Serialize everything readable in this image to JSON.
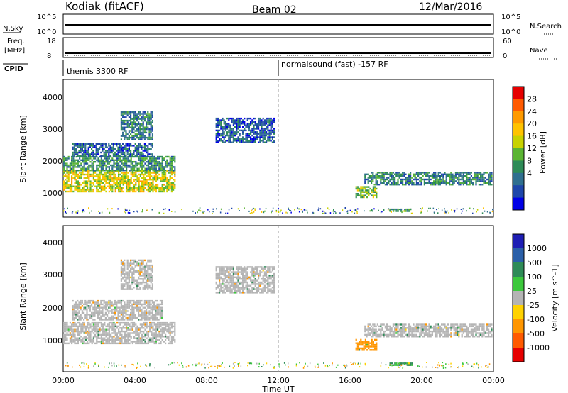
{
  "header": {
    "station": "Kodiak (fitACF)",
    "beam": "Beam 02",
    "date": "12/Mar/2016"
  },
  "status_panels": {
    "nsky_label": "N.Sky",
    "nsky_ticks": [
      "10^5",
      "10^0"
    ],
    "nsearch_label": "N.Search",
    "nsearch_ticks": [
      "10^5",
      "10^0"
    ],
    "freq_label_line1": "Freq.",
    "freq_label_line2": "[MHz]",
    "freq_ticks": [
      "18",
      "8"
    ],
    "nave_label": "Nave",
    "nave_ticks": [
      "60",
      "0"
    ],
    "cpid_label": "CPID",
    "cpid_segments": [
      {
        "label": "themis 3300 RF",
        "start_hour": 0
      },
      {
        "label": "normalsound (fast) -157 RF",
        "start_hour": 12
      }
    ]
  },
  "axes": {
    "ylabel": "Slant Range [km]",
    "yticks": [
      "4000",
      "3000",
      "2000",
      "1000"
    ],
    "xlabel": "Time UT",
    "xticks": [
      "00:00",
      "04:00",
      "08:00",
      "12:00",
      "16:00",
      "20:00",
      "00:00"
    ]
  },
  "colorbars": {
    "power": {
      "label": "Power [dB]",
      "ticks": [
        "28",
        "24",
        "20",
        "16",
        "12",
        "8",
        "4"
      ],
      "colors": [
        "#e60000",
        "#ff5a00",
        "#ff9a00",
        "#ffc300",
        "#c8d200",
        "#5ab432",
        "#2e8b57",
        "#2f6f8f",
        "#1e46aa",
        "#0000e6"
      ]
    },
    "velocity": {
      "label": "Velocity [m s^-1]",
      "ticks": [
        "1000",
        "500",
        "100",
        "25",
        "-25",
        "-100",
        "-500",
        "-1000"
      ],
      "colors": [
        "#1e1eb4",
        "#2a5fa8",
        "#2e8b57",
        "#3cc83c",
        "#b4b4b4",
        "#ffd200",
        "#ff9600",
        "#ff5a00",
        "#e60000"
      ]
    }
  },
  "chart_data": [
    {
      "type": "heatmap",
      "title": "Power",
      "x_range_hours": [
        0,
        24
      ],
      "y_range_km": [
        180,
        4500
      ],
      "value_range": [
        0,
        30
      ],
      "regions": [
        {
          "t0": 0.0,
          "t1": 6.2,
          "r0": 1000,
          "r1": 1650,
          "value": 17
        },
        {
          "t0": 0.0,
          "t1": 6.2,
          "r0": 1650,
          "r1": 2100,
          "value": 10
        },
        {
          "t0": 0.5,
          "t1": 5.0,
          "r0": 2100,
          "r1": 2500,
          "value": 7
        },
        {
          "t0": 3.2,
          "t1": 5.0,
          "r0": 2600,
          "r1": 3500,
          "value": 8
        },
        {
          "t0": 8.5,
          "t1": 11.8,
          "r0": 2500,
          "r1": 3300,
          "value": 6
        },
        {
          "t0": 16.3,
          "t1": 17.5,
          "r0": 800,
          "r1": 1150,
          "value": 14
        },
        {
          "t0": 16.8,
          "t1": 23.9,
          "r0": 1200,
          "r1": 1600,
          "value": 9
        },
        {
          "t0": 18.2,
          "t1": 19.5,
          "r0": 350,
          "r1": 450,
          "value": 12
        }
      ]
    },
    {
      "type": "heatmap",
      "title": "Velocity",
      "x_range_hours": [
        0,
        24
      ],
      "y_range_km": [
        180,
        4500
      ],
      "value_range": [
        -1000,
        1000
      ],
      "regions": [
        {
          "t0": 0.0,
          "t1": 6.2,
          "r0": 1000,
          "r1": 1650,
          "value": 0
        },
        {
          "t0": 0.5,
          "t1": 5.5,
          "r0": 1700,
          "r1": 2300,
          "value": 0
        },
        {
          "t0": 3.2,
          "t1": 5.0,
          "r0": 2600,
          "r1": 3500,
          "value": 0
        },
        {
          "t0": 8.5,
          "t1": 11.8,
          "r0": 2500,
          "r1": 3300,
          "value": 0
        },
        {
          "t0": 16.3,
          "t1": 17.5,
          "r0": 800,
          "r1": 1150,
          "value": -150
        },
        {
          "t0": 16.8,
          "t1": 23.9,
          "r0": 1200,
          "r1": 1600,
          "value": 0
        },
        {
          "t0": 18.2,
          "t1": 19.5,
          "r0": 350,
          "r1": 450,
          "value": 100
        }
      ]
    }
  ]
}
